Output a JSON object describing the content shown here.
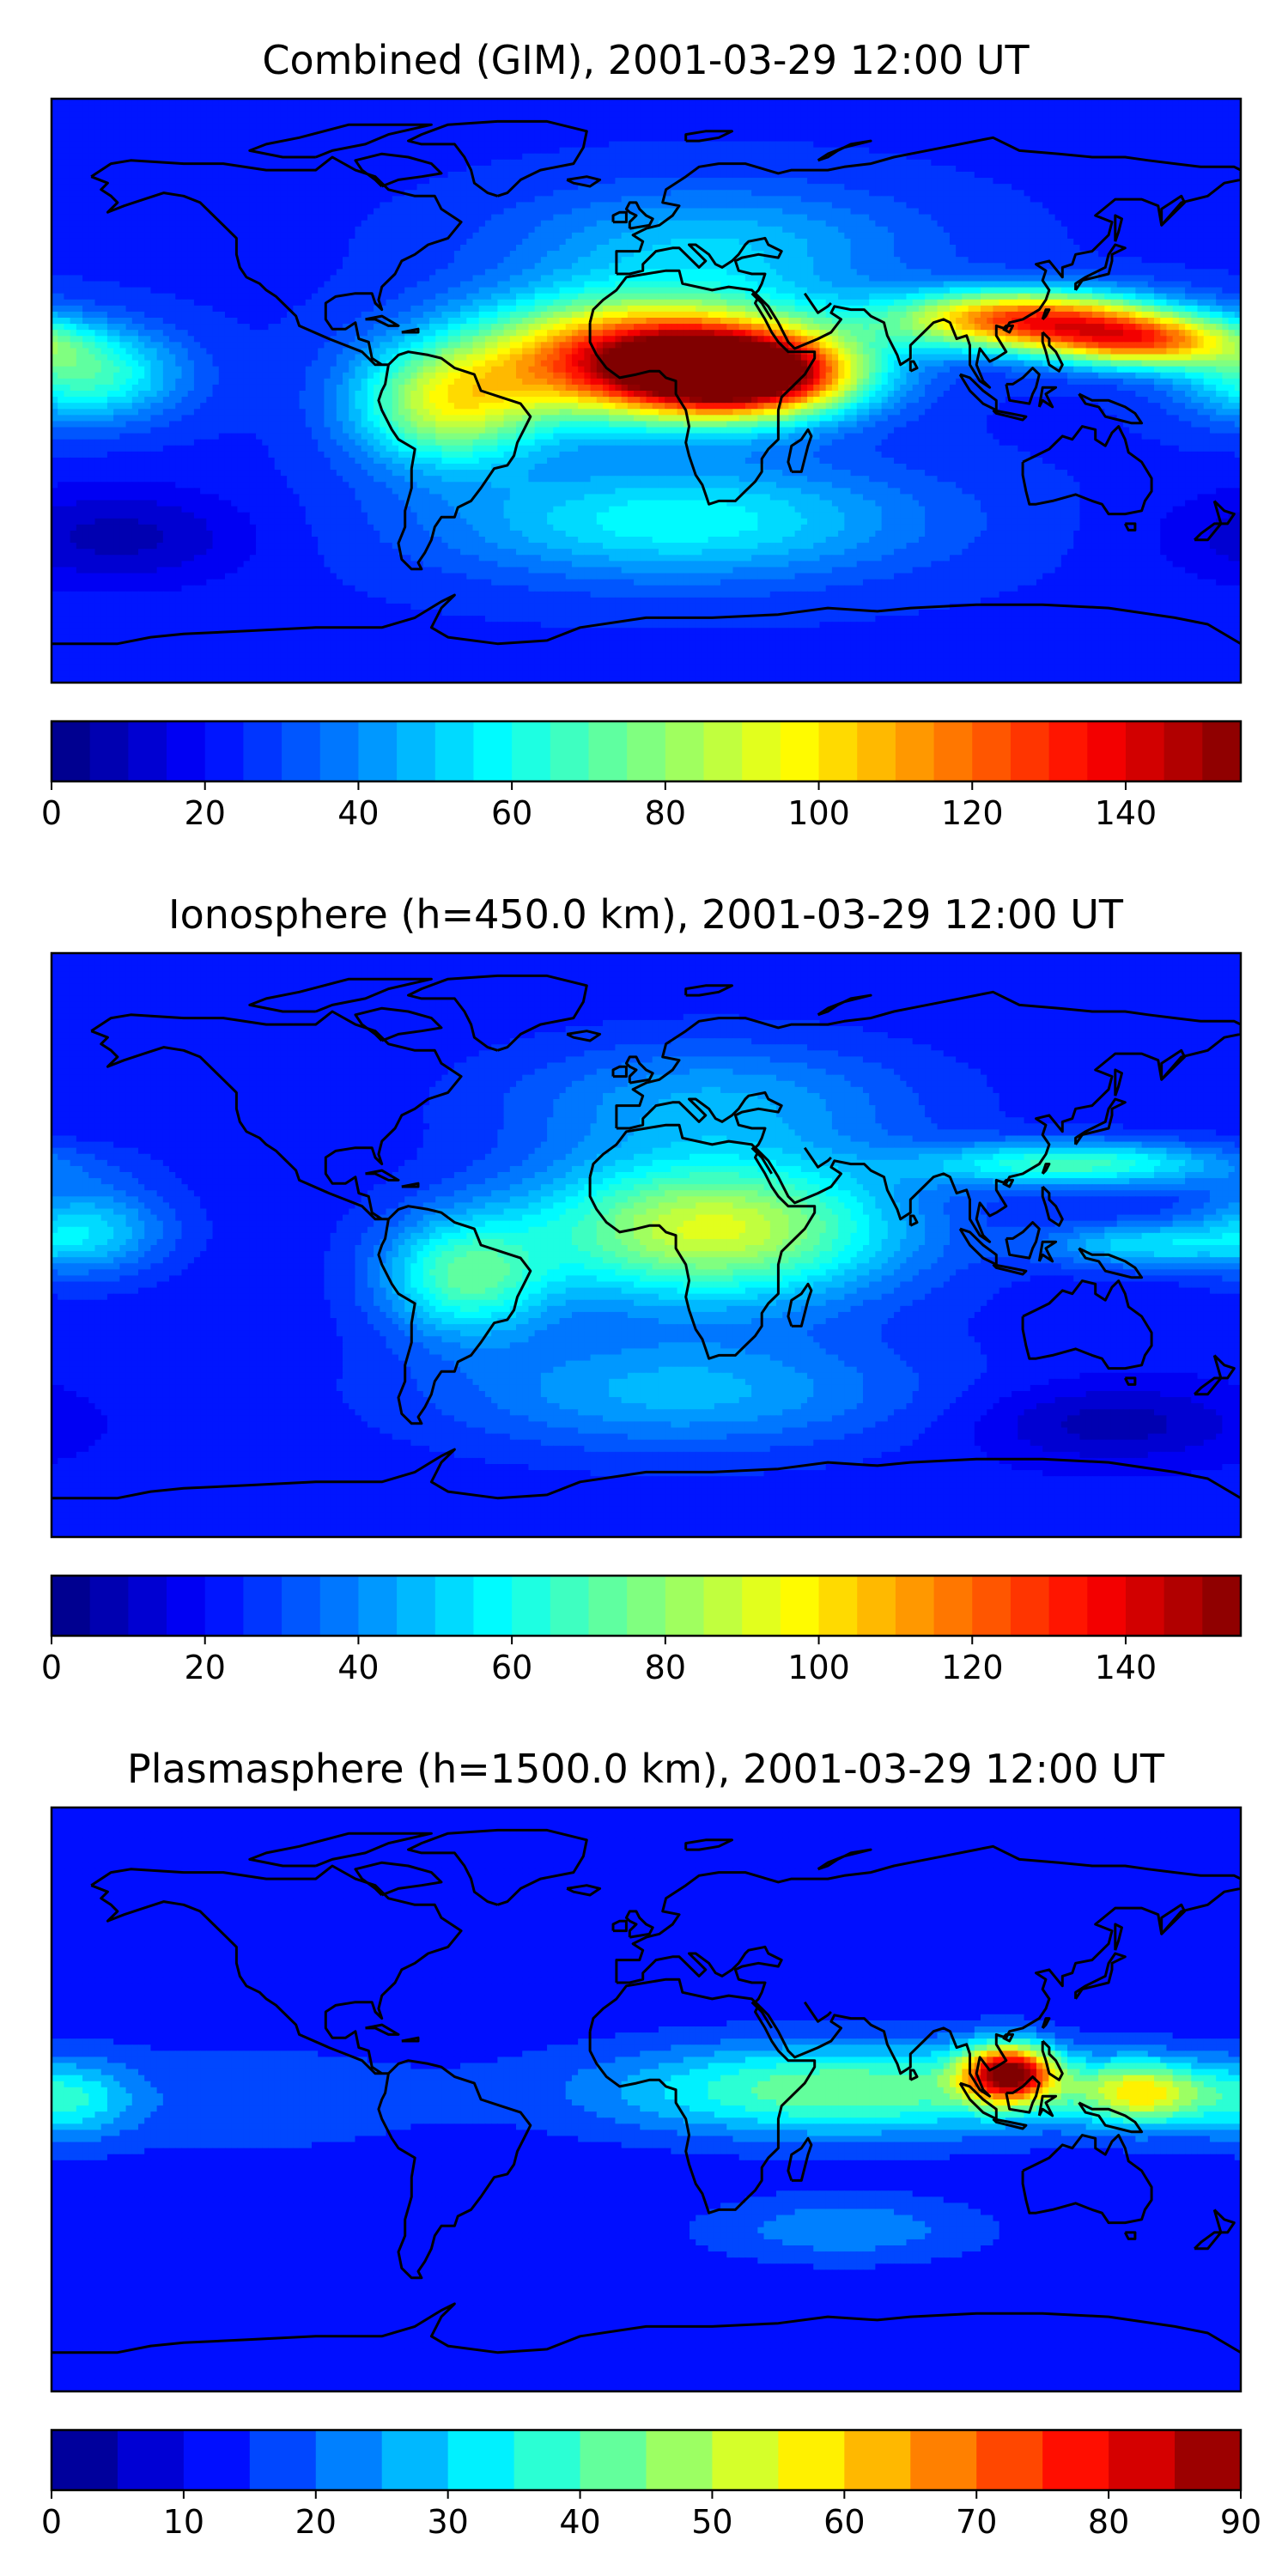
{
  "panels": [
    {
      "title": "Combined (GIM), 2001-03-29 12:00 UT",
      "colorbar": {
        "min": 0,
        "max": 155,
        "step": 5,
        "ticks": [
          "0",
          "20",
          "40",
          "60",
          "80",
          "100",
          "120",
          "140"
        ],
        "tick_values": [
          0,
          20,
          40,
          60,
          80,
          100,
          120,
          140
        ]
      },
      "field": {
        "base": 24,
        "blobs": [
          {
            "lon": 0,
            "lat": 10,
            "amp": 120,
            "rlon": 50,
            "rlat": 18
          },
          {
            "lon": 30,
            "lat": 5,
            "amp": 118,
            "rlon": 32,
            "rlat": 12
          },
          {
            "lon": 115,
            "lat": 22,
            "amp": 100,
            "rlon": 40,
            "rlat": 9
          },
          {
            "lon": 150,
            "lat": 15,
            "amp": 80,
            "rlon": 30,
            "rlat": 8
          },
          {
            "lon": -60,
            "lat": -5,
            "amp": 60,
            "rlon": 28,
            "rlat": 18
          },
          {
            "lon": -170,
            "lat": 5,
            "amp": 45,
            "rlon": 28,
            "rlat": 14
          },
          {
            "lon": 20,
            "lat": 45,
            "amp": 25,
            "rlon": 60,
            "rlat": 18
          },
          {
            "lon": 10,
            "lat": -40,
            "amp": 35,
            "rlon": 70,
            "rlat": 18
          },
          {
            "lon": -160,
            "lat": -45,
            "amp": -16,
            "rlon": 40,
            "rlat": 15
          }
        ]
      }
    },
    {
      "title": "Ionosphere  (h=450.0 km), 2001-03-29 12:00 UT",
      "colorbar": {
        "min": 0,
        "max": 155,
        "step": 5,
        "ticks": [
          "0",
          "20",
          "40",
          "60",
          "80",
          "100",
          "120",
          "140"
        ],
        "tick_values": [
          0,
          20,
          40,
          60,
          80,
          100,
          120,
          140
        ]
      },
      "field": {
        "base": 22,
        "blobs": [
          {
            "lon": 20,
            "lat": 5,
            "amp": 70,
            "rlon": 55,
            "rlat": 22
          },
          {
            "lon": -55,
            "lat": -10,
            "amp": 45,
            "rlon": 25,
            "rlat": 18
          },
          {
            "lon": 130,
            "lat": 25,
            "amp": 45,
            "rlon": 45,
            "rlat": 7
          },
          {
            "lon": 150,
            "lat": 0,
            "amp": 30,
            "rlon": 30,
            "rlat": 7
          },
          {
            "lon": -170,
            "lat": 5,
            "amp": 30,
            "rlon": 25,
            "rlat": 14
          },
          {
            "lon": 20,
            "lat": 45,
            "amp": 22,
            "rlon": 60,
            "rlat": 18
          },
          {
            "lon": 10,
            "lat": -45,
            "amp": 25,
            "rlon": 70,
            "rlat": 18
          },
          {
            "lon": 140,
            "lat": -55,
            "amp": -15,
            "rlon": 40,
            "rlat": 12
          }
        ]
      }
    },
    {
      "title": "Plasmasphere (h=1500.0 km), 2001-03-29 12:00 UT",
      "colorbar": {
        "min": 0,
        "max": 90,
        "step": 5,
        "ticks": [
          "0",
          "10",
          "20",
          "30",
          "40",
          "50",
          "60",
          "70",
          "80",
          "90"
        ],
        "tick_values": [
          0,
          10,
          20,
          30,
          40,
          50,
          60,
          70,
          80,
          90
        ]
      },
      "field": {
        "base": 12,
        "blobs": [
          {
            "lon": 110,
            "lat": 8,
            "amp": 68,
            "rlon": 14,
            "rlat": 9
          },
          {
            "lon": 150,
            "lat": 2,
            "amp": 40,
            "rlon": 20,
            "rlat": 10
          },
          {
            "lon": 60,
            "lat": 3,
            "amp": 33,
            "rlon": 70,
            "rlat": 14
          },
          {
            "lon": -175,
            "lat": 0,
            "amp": 20,
            "rlon": 20,
            "rlat": 12
          },
          {
            "lon": 60,
            "lat": -40,
            "amp": 12,
            "rlon": 40,
            "rlat": 10
          },
          {
            "lon": -120,
            "lat": 0,
            "amp": 6,
            "rlon": 60,
            "rlat": 18
          }
        ]
      }
    }
  ],
  "colormap": "jet"
}
